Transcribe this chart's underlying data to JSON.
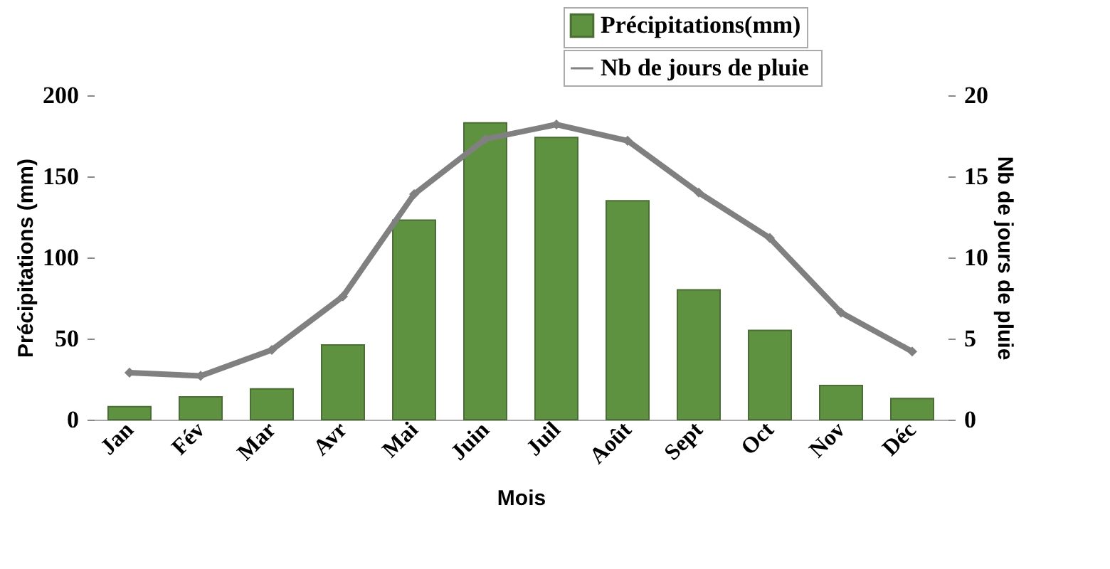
{
  "chart_data": {
    "type": "bar",
    "categories": [
      "Jan",
      "Fév",
      "Mar",
      "Avr",
      "Mai",
      "Juin",
      "Juil",
      "Août",
      "Sept",
      "Oct",
      "Nov",
      "Déc"
    ],
    "xlabel": "Mois",
    "ylabel": "Précipitations (mm)",
    "y2label": "Nb de jours de pluie",
    "series": [
      {
        "name": "Précipitations(mm)",
        "color": "#5e9140",
        "values": [
          8,
          14,
          19,
          46,
          123,
          183,
          174,
          135,
          80,
          55,
          21,
          13
        ]
      },
      {
        "name": "Nb  de jours de pluie",
        "type": "line",
        "axis": "y2",
        "color": "#808080",
        "marker": "diamond",
        "values": [
          2.9,
          2.7,
          4.3,
          7.6,
          13.9,
          17.3,
          18.2,
          17.2,
          14.0,
          11.2,
          6.6,
          4.2
        ]
      }
    ],
    "ylim": [
      0,
      200
    ],
    "yticks": [
      0,
      50,
      100,
      150,
      200
    ],
    "y2lim": [
      0,
      20
    ],
    "y2ticks": [
      0,
      5,
      10,
      15,
      20
    ],
    "grid": false,
    "legend": "top right"
  }
}
